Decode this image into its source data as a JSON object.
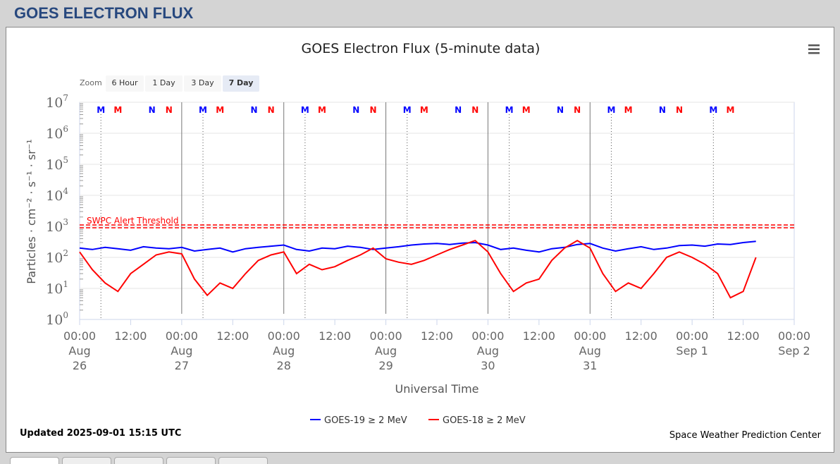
{
  "page_title": "GOES ELECTRON FLUX",
  "menu_icon": "hamburger-menu-icon",
  "zoom": {
    "label": "Zoom",
    "buttons": [
      "6 Hour",
      "1 Day",
      "3 Day",
      "7 Day"
    ],
    "selected": "7 Day"
  },
  "updated": "Updated 2025-09-01 15:15 UTC",
  "credit": "Space Weather Prediction Center",
  "chart_data": {
    "type": "line",
    "title": "GOES Electron Flux (5-minute data)",
    "xlabel": "Universal Time",
    "ylabel": "Particles · cm⁻² · s⁻¹ · sr⁻¹",
    "yscale": "log",
    "ylim": [
      1,
      10000000
    ],
    "yticks": [
      {
        "exp": "0"
      },
      {
        "exp": "1"
      },
      {
        "exp": "2"
      },
      {
        "exp": "3"
      },
      {
        "exp": "4"
      },
      {
        "exp": "5"
      },
      {
        "exp": "6"
      },
      {
        "exp": "7"
      }
    ],
    "xlim_hours": [
      0,
      168
    ],
    "xticks": [
      {
        "h": 0,
        "t": "00:00",
        "d1": "Aug",
        "d2": "26"
      },
      {
        "h": 12,
        "t": "12:00"
      },
      {
        "h": 24,
        "t": "00:00",
        "d1": "Aug",
        "d2": "27"
      },
      {
        "h": 36,
        "t": "12:00"
      },
      {
        "h": 48,
        "t": "00:00",
        "d1": "Aug",
        "d2": "28"
      },
      {
        "h": 60,
        "t": "12:00"
      },
      {
        "h": 72,
        "t": "00:00",
        "d1": "Aug",
        "d2": "29"
      },
      {
        "h": 84,
        "t": "12:00"
      },
      {
        "h": 96,
        "t": "00:00",
        "d1": "Aug",
        "d2": "30"
      },
      {
        "h": 108,
        "t": "12:00"
      },
      {
        "h": 120,
        "t": "00:00",
        "d1": "Aug",
        "d2": "31"
      },
      {
        "h": 132,
        "t": "12:00"
      },
      {
        "h": 144,
        "t": "00:00",
        "d1": "Sep 1"
      },
      {
        "h": 156,
        "t": "12:00"
      },
      {
        "h": 168,
        "t": "00:00",
        "d1": "Sep 2"
      }
    ],
    "threshold": {
      "value": 1000,
      "label": "SWPC Alert Threshold",
      "color": "#ff0000"
    },
    "markers": [
      {
        "label": "M",
        "color": "#0000ff",
        "offset_h": 5
      },
      {
        "label": "M",
        "color": "#ff0000",
        "offset_h": 9
      },
      {
        "label": "N",
        "color": "#0000ff",
        "offset_h": 17
      },
      {
        "label": "N",
        "color": "#ff0000",
        "offset_h": 21
      }
    ],
    "x_step_hours": 3,
    "series": [
      {
        "name": "GOES-19 ≥ 2 MeV",
        "color": "#0000ff",
        "values": [
          200,
          180,
          210,
          190,
          170,
          220,
          200,
          190,
          210,
          160,
          180,
          200,
          150,
          190,
          210,
          230,
          250,
          180,
          160,
          200,
          190,
          230,
          210,
          180,
          200,
          220,
          250,
          270,
          280,
          260,
          290,
          300,
          250,
          180,
          200,
          170,
          150,
          190,
          210,
          260,
          280,
          200,
          160,
          190,
          220,
          180,
          200,
          240,
          250,
          230,
          270,
          260,
          300,
          330
        ]
      },
      {
        "name": "GOES-18 ≥ 2 MeV",
        "color": "#ff0000",
        "values": [
          150,
          40,
          15,
          8,
          30,
          60,
          120,
          150,
          130,
          20,
          6,
          15,
          10,
          30,
          80,
          120,
          150,
          30,
          60,
          40,
          50,
          80,
          120,
          200,
          90,
          70,
          60,
          80,
          120,
          180,
          250,
          350,
          150,
          30,
          8,
          15,
          20,
          80,
          200,
          350,
          200,
          30,
          8,
          15,
          10,
          30,
          100,
          150,
          100,
          60,
          30,
          5,
          8,
          100
        ]
      }
    ]
  }
}
